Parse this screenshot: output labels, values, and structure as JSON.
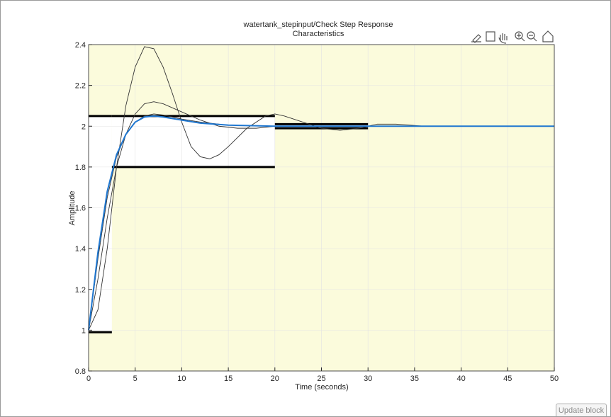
{
  "chart_data": {
    "type": "line",
    "title": [
      "watertank_stepinput/Check  Step  Response",
      "Characteristics"
    ],
    "xlabel": "Time (seconds)",
    "ylabel": "Amplitude",
    "xlim": [
      0,
      50
    ],
    "ylim": [
      0.8,
      2.4
    ],
    "xticks": [
      0,
      5,
      10,
      15,
      20,
      25,
      30,
      35,
      40,
      45,
      50
    ],
    "yticks": [
      0.8,
      1,
      1.2,
      1.4,
      1.6,
      1.8,
      2,
      2.2,
      2.4
    ],
    "grid": true,
    "bounds": [
      {
        "x": [
          0,
          2.5
        ],
        "y": [
          0.99,
          2.05
        ]
      },
      {
        "x": [
          2.5,
          20
        ],
        "y": [
          1.8,
          2.05
        ]
      },
      {
        "x": [
          20,
          30
        ],
        "y": [
          1.99,
          2.01
        ]
      }
    ],
    "series": [
      {
        "color": "#333333",
        "x": [
          0,
          1,
          2,
          3,
          4,
          5,
          6,
          7,
          8,
          9,
          10,
          11,
          12,
          13,
          14,
          15,
          17,
          19,
          20,
          21,
          23,
          25,
          27,
          29,
          31,
          33,
          36,
          40,
          50
        ],
        "values": [
          1,
          1.1,
          1.4,
          1.8,
          2.1,
          2.29,
          2.39,
          2.38,
          2.29,
          2.16,
          2.02,
          1.9,
          1.85,
          1.84,
          1.86,
          1.9,
          1.99,
          2.05,
          2.06,
          2.05,
          2.02,
          1.99,
          1.98,
          1.99,
          2.01,
          2.01,
          2.0,
          2.0,
          2.0
        ]
      },
      {
        "color": "#333333",
        "x": [
          0,
          1,
          2,
          3,
          4,
          5,
          6,
          7,
          8,
          9,
          10,
          12,
          14,
          16,
          18,
          20,
          24,
          30,
          50
        ],
        "values": [
          1,
          1.25,
          1.55,
          1.8,
          1.96,
          2.06,
          2.11,
          2.12,
          2.11,
          2.09,
          2.07,
          2.03,
          2.0,
          1.99,
          1.99,
          2.0,
          2.0,
          2.0,
          2.0
        ]
      },
      {
        "color": "#333333",
        "x": [
          0,
          1,
          2,
          3,
          4,
          5,
          6,
          7,
          8,
          10,
          12,
          15,
          20,
          30,
          50
        ],
        "values": [
          1,
          1.35,
          1.65,
          1.85,
          1.96,
          2.02,
          2.05,
          2.06,
          2.055,
          2.035,
          2.02,
          2.005,
          2.0,
          2.0,
          2.0
        ]
      },
      {
        "color": "#1f77d0",
        "x": [
          0,
          1,
          2,
          3,
          4,
          5,
          6,
          7,
          8,
          10,
          12,
          15,
          20,
          25,
          30,
          40,
          50
        ],
        "values": [
          1,
          1.38,
          1.68,
          1.86,
          1.96,
          2.02,
          2.045,
          2.05,
          2.045,
          2.03,
          2.015,
          2.005,
          2.0,
          2.0,
          2.0,
          2.0,
          2.0
        ]
      }
    ]
  },
  "ui": {
    "button": "Update block"
  }
}
